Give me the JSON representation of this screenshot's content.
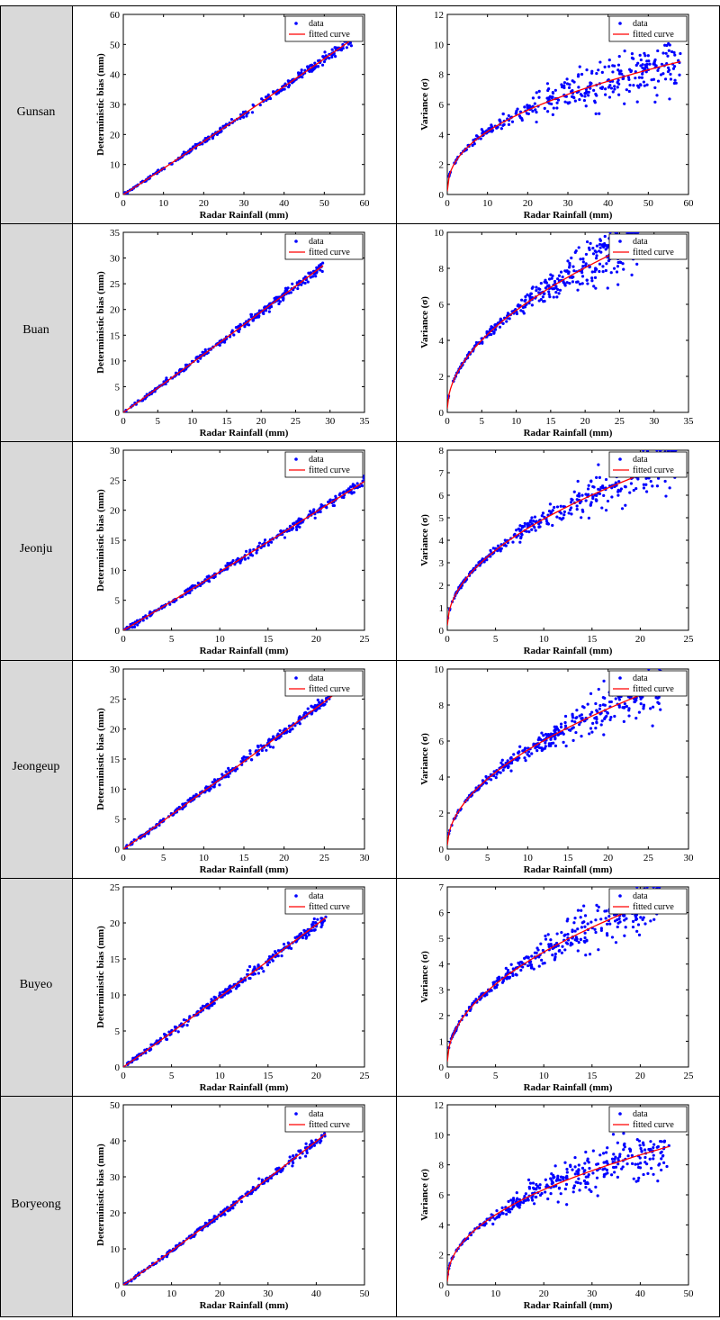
{
  "colors": {
    "data": "#0000ff",
    "curve": "#ff0000",
    "station_bg": "#d9d9d9"
  },
  "chart_data": [
    {
      "station": "Gunsan",
      "bias": {
        "type": "scatter",
        "xlabel": "Radar Rainfall (mm)",
        "ylabel": "Deterministic bias (mm)",
        "xlim": [
          0,
          60
        ],
        "ylim": [
          0,
          60
        ],
        "xticks": [
          0,
          10,
          20,
          30,
          40,
          50,
          60
        ],
        "yticks": [
          0,
          10,
          20,
          30,
          40,
          50,
          60
        ],
        "legend": [
          "data",
          "fitted curve"
        ],
        "legend_position": "top-right",
        "curve": {
          "a": 0.82,
          "b": 1.025,
          "xmax": 58
        }
      },
      "variance": {
        "type": "scatter",
        "xlabel": "Radar Rainfall (mm)",
        "ylabel": "Variance (σ)",
        "xlim": [
          0,
          60
        ],
        "ylim": [
          0,
          12
        ],
        "xticks": [
          0,
          10,
          20,
          30,
          40,
          50,
          60
        ],
        "yticks": [
          0,
          2,
          4,
          6,
          8,
          10,
          12
        ],
        "legend": [
          "data",
          "fitted curve"
        ],
        "legend_position": "top-right",
        "curve": {
          "a": 1.45,
          "b": 0.44,
          "xmax": 58
        }
      }
    },
    {
      "station": "Buan",
      "bias": {
        "type": "scatter",
        "xlabel": "Radar Rainfall (mm)",
        "ylabel": "Deterministic bias (mm)",
        "xlim": [
          0,
          35
        ],
        "ylim": [
          0,
          35
        ],
        "xticks": [
          0,
          5,
          10,
          15,
          20,
          25,
          30,
          35
        ],
        "yticks": [
          0,
          5,
          10,
          15,
          20,
          25,
          30,
          35
        ],
        "legend": [
          "data",
          "fitted curve"
        ],
        "legend_position": "top-right",
        "curve": {
          "a": 0.92,
          "b": 1.02,
          "xmax": 29
        }
      },
      "variance": {
        "type": "scatter",
        "xlabel": "Radar Rainfall (mm)",
        "ylabel": "Variance (σ)",
        "xlim": [
          0,
          35
        ],
        "ylim": [
          0,
          10
        ],
        "xticks": [
          0,
          5,
          10,
          15,
          20,
          25,
          30,
          35
        ],
        "yticks": [
          0,
          2,
          4,
          6,
          8,
          10
        ],
        "legend": [
          "data",
          "fitted curve"
        ],
        "legend_position": "top-right",
        "curve": {
          "a": 1.65,
          "b": 0.52,
          "xmax": 28
        }
      }
    },
    {
      "station": "Jeonju",
      "bias": {
        "type": "scatter",
        "xlabel": "Radar Rainfall (mm)",
        "ylabel": "Deterministic bias (mm)",
        "xlim": [
          0,
          25
        ],
        "ylim": [
          0,
          30
        ],
        "xticks": [
          0,
          5,
          10,
          15,
          20,
          25
        ],
        "yticks": [
          0,
          5,
          10,
          15,
          20,
          25,
          30
        ],
        "legend": [
          "data",
          "fitted curve"
        ],
        "legend_position": "top-right",
        "curve": {
          "a": 0.93,
          "b": 1.02,
          "xmax": 25
        }
      },
      "variance": {
        "type": "scatter",
        "xlabel": "Radar Rainfall (mm)",
        "ylabel": "Variance (σ)",
        "xlim": [
          0,
          25
        ],
        "ylim": [
          0,
          8
        ],
        "xticks": [
          0,
          5,
          10,
          15,
          20,
          25
        ],
        "yticks": [
          0,
          1,
          2,
          3,
          4,
          5,
          6,
          7,
          8
        ],
        "legend": [
          "data",
          "fitted curve"
        ],
        "legend_position": "top-right",
        "curve": {
          "a": 1.5,
          "b": 0.5,
          "xmax": 24
        }
      }
    },
    {
      "station": "Jeongeup",
      "bias": {
        "type": "scatter",
        "xlabel": "Radar Rainfall (mm)",
        "ylabel": "Deterministic bias (mm)",
        "xlim": [
          0,
          30
        ],
        "ylim": [
          0,
          30
        ],
        "xticks": [
          0,
          5,
          10,
          15,
          20,
          25,
          30
        ],
        "yticks": [
          0,
          5,
          10,
          15,
          20,
          25,
          30
        ],
        "legend": [
          "data",
          "fitted curve"
        ],
        "legend_position": "top-right",
        "curve": {
          "a": 0.92,
          "b": 1.02,
          "xmax": 26
        }
      },
      "variance": {
        "type": "scatter",
        "xlabel": "Radar Rainfall (mm)",
        "ylabel": "Variance (σ)",
        "xlim": [
          0,
          30
        ],
        "ylim": [
          0,
          10
        ],
        "xticks": [
          0,
          5,
          10,
          15,
          20,
          25,
          30
        ],
        "yticks": [
          0,
          2,
          4,
          6,
          8,
          10
        ],
        "legend": [
          "data",
          "fitted curve"
        ],
        "legend_position": "top-right",
        "curve": {
          "a": 1.6,
          "b": 0.52,
          "xmax": 27
        }
      }
    },
    {
      "station": "Buyeo",
      "bias": {
        "type": "scatter",
        "xlabel": "Radar Rainfall (mm)",
        "ylabel": "Deterministic bias (mm)",
        "xlim": [
          0,
          25
        ],
        "ylim": [
          0,
          25
        ],
        "xticks": [
          0,
          5,
          10,
          15,
          20,
          25
        ],
        "yticks": [
          0,
          5,
          10,
          15,
          20,
          25
        ],
        "legend": [
          "data",
          "fitted curve"
        ],
        "legend_position": "top-right",
        "curve": {
          "a": 0.93,
          "b": 1.02,
          "xmax": 21
        }
      },
      "variance": {
        "type": "scatter",
        "xlabel": "Radar Rainfall (mm)",
        "ylabel": "Variance (σ)",
        "xlim": [
          0,
          25
        ],
        "ylim": [
          0,
          7
        ],
        "xticks": [
          0,
          5,
          10,
          15,
          20,
          25
        ],
        "yticks": [
          0,
          1,
          2,
          3,
          4,
          5,
          6,
          7
        ],
        "legend": [
          "data",
          "fitted curve"
        ],
        "legend_position": "top-right",
        "curve": {
          "a": 1.35,
          "b": 0.5,
          "xmax": 22
        }
      }
    },
    {
      "station": "Boryeong",
      "bias": {
        "type": "scatter",
        "xlabel": "Radar Rainfall (mm)",
        "ylabel": "Deterministic bias (mm)",
        "xlim": [
          0,
          50
        ],
        "ylim": [
          0,
          50
        ],
        "xticks": [
          0,
          10,
          20,
          30,
          40,
          50
        ],
        "yticks": [
          0,
          10,
          20,
          30,
          40,
          50
        ],
        "legend": [
          "data",
          "fitted curve"
        ],
        "legend_position": "top-right",
        "curve": {
          "a": 0.86,
          "b": 1.04,
          "xmax": 42
        }
      },
      "variance": {
        "type": "scatter",
        "xlabel": "Radar Rainfall (mm)",
        "ylabel": "Variance (σ)",
        "xlim": [
          0,
          50
        ],
        "ylim": [
          0,
          12
        ],
        "xticks": [
          0,
          10,
          20,
          30,
          40,
          50
        ],
        "yticks": [
          0,
          2,
          4,
          6,
          8,
          10,
          12
        ],
        "legend": [
          "data",
          "fitted curve"
        ],
        "legend_position": "top-right",
        "curve": {
          "a": 1.55,
          "b": 0.46,
          "xmax": 46
        }
      }
    }
  ]
}
